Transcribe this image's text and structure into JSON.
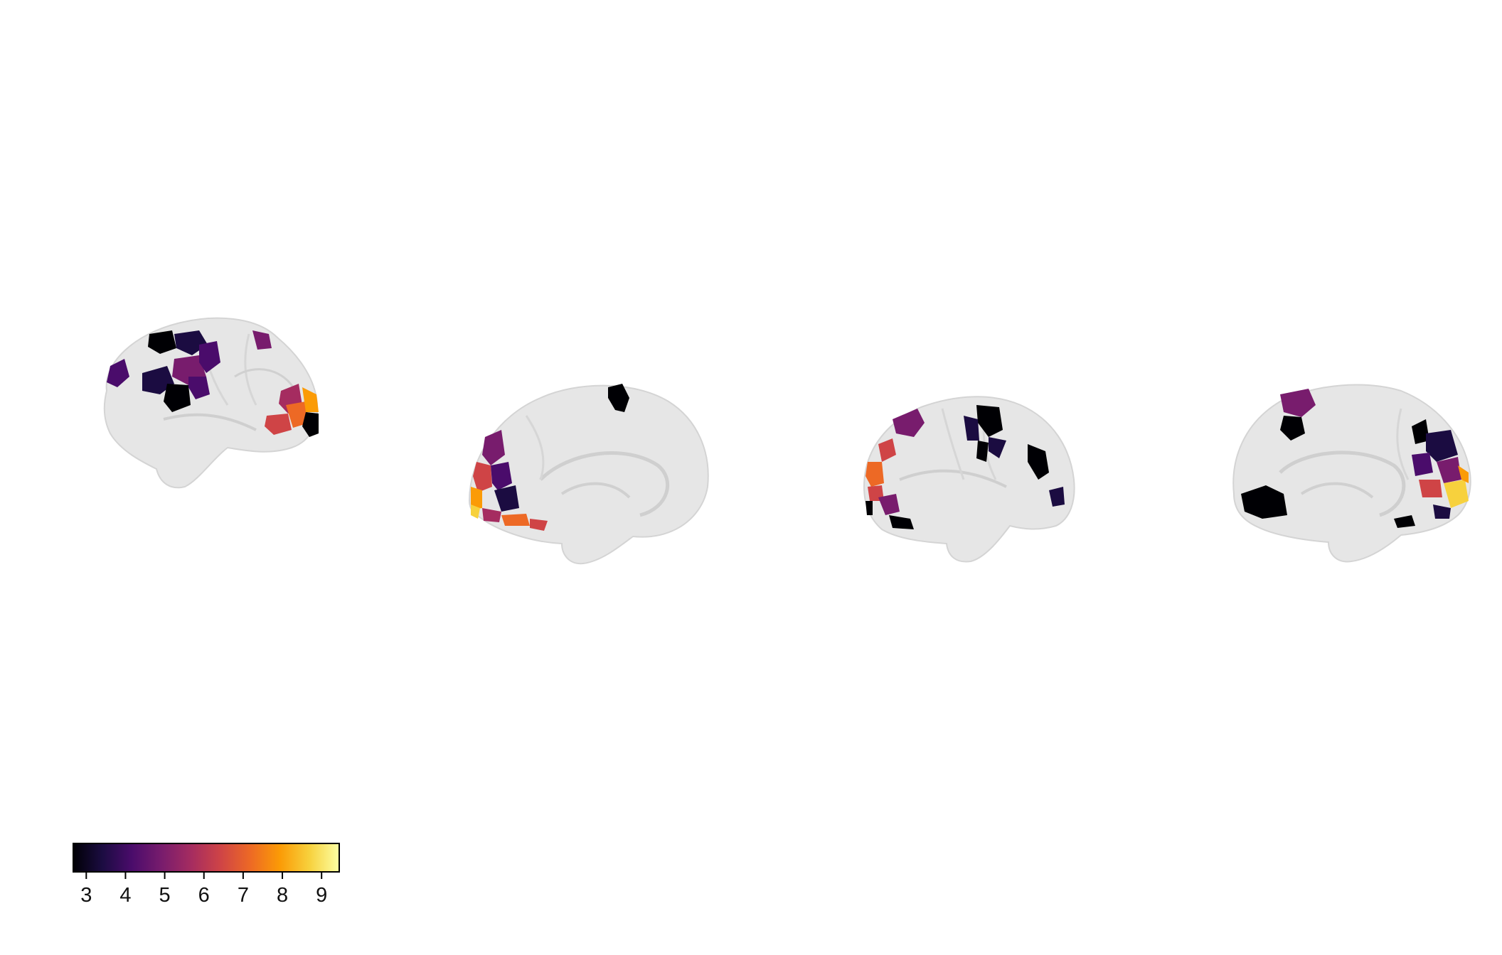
{
  "figure": {
    "views": [
      {
        "name": "left-lateral"
      },
      {
        "name": "left-medial"
      },
      {
        "name": "right-lateral"
      },
      {
        "name": "right-medial"
      }
    ],
    "colors": {
      "cortex": "#e6e6e6",
      "cortex_shade": "#d2d2d2",
      "colormap": [
        "#000004",
        "#1b0c41",
        "#4a0c6b",
        "#781c6d",
        "#a52c60",
        "#cf4446",
        "#ed6925",
        "#fb9b06",
        "#f7d13d",
        "#fcffa4"
      ]
    }
  },
  "colorbar": {
    "min": 2.65,
    "max": 9.45,
    "ticks": [
      {
        "value": 3,
        "label": "3"
      },
      {
        "value": 4,
        "label": "4"
      },
      {
        "value": 5,
        "label": "5"
      },
      {
        "value": 6,
        "label": "6"
      },
      {
        "value": 7,
        "label": "7"
      },
      {
        "value": 8,
        "label": "8"
      },
      {
        "value": 9,
        "label": "9"
      }
    ]
  }
}
